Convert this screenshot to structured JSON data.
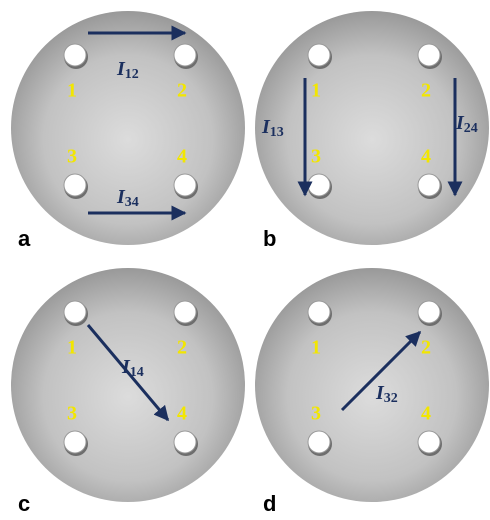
{
  "panels": [
    {
      "label": "a",
      "holes": [
        "1",
        "2",
        "3",
        "4"
      ],
      "currents": [
        {
          "symbol": "I",
          "subscript": "12"
        },
        {
          "symbol": "I",
          "subscript": "34"
        }
      ]
    },
    {
      "label": "b",
      "holes": [
        "1",
        "2",
        "3",
        "4"
      ],
      "currents": [
        {
          "symbol": "I",
          "subscript": "13"
        },
        {
          "symbol": "I",
          "subscript": "24"
        }
      ]
    },
    {
      "label": "c",
      "holes": [
        "1",
        "2",
        "3",
        "4"
      ],
      "currents": [
        {
          "symbol": "I",
          "subscript": "14"
        }
      ]
    },
    {
      "label": "d",
      "holes": [
        "1",
        "2",
        "3",
        "4"
      ],
      "currents": [
        {
          "symbol": "I",
          "subscript": "32"
        }
      ]
    }
  ]
}
